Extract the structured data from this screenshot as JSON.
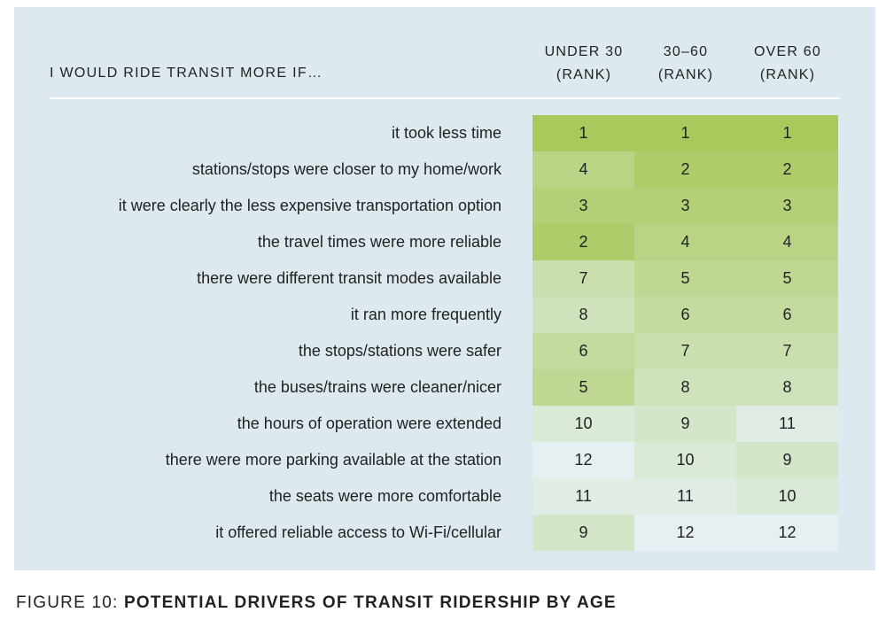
{
  "chart_data": {
    "type": "table",
    "row_header": "I WOULD RIDE TRANSIT MORE IF…",
    "columns": [
      {
        "line1": "UNDER 30",
        "line2": "(RANK)"
      },
      {
        "line1": "30–60",
        "line2": "(RANK)"
      },
      {
        "line1": "OVER 60",
        "line2": "(RANK)"
      }
    ],
    "rows": [
      {
        "label": "it took less time",
        "ranks": [
          1,
          1,
          1
        ]
      },
      {
        "label": "stations/stops were closer to my home/work",
        "ranks": [
          4,
          2,
          2
        ]
      },
      {
        "label": "it were clearly the less expensive transportation option",
        "ranks": [
          3,
          3,
          3
        ]
      },
      {
        "label": "the travel times were more reliable",
        "ranks": [
          2,
          4,
          4
        ]
      },
      {
        "label": "there were different transit modes available",
        "ranks": [
          7,
          5,
          5
        ]
      },
      {
        "label": "it ran more frequently",
        "ranks": [
          8,
          6,
          6
        ]
      },
      {
        "label": "the stops/stations were safer",
        "ranks": [
          6,
          7,
          7
        ]
      },
      {
        "label": "the buses/trains were cleaner/nicer",
        "ranks": [
          5,
          8,
          8
        ]
      },
      {
        "label": "the hours of operation were extended",
        "ranks": [
          10,
          9,
          11
        ]
      },
      {
        "label": "there were more parking available at the station",
        "ranks": [
          12,
          10,
          9
        ]
      },
      {
        "label": "the seats were more comfortable",
        "ranks": [
          11,
          11,
          10
        ]
      },
      {
        "label": "it offered reliable access to Wi-Fi/cellular",
        "ranks": [
          9,
          12,
          12
        ]
      }
    ],
    "color_scale": {
      "best": "#a8c95c",
      "worst": "#e6f0f2",
      "max_rank": 12
    }
  },
  "caption": {
    "prefix": "FIGURE 10: ",
    "title": "POTENTIAL DRIVERS OF TRANSIT RIDERSHIP BY AGE"
  }
}
